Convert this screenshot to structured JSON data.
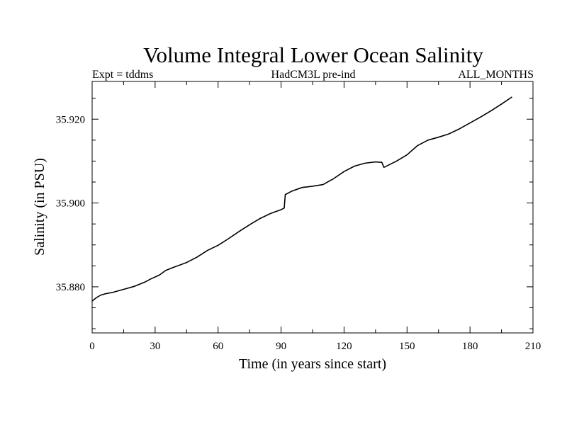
{
  "chart_data": {
    "type": "line",
    "title": "Volume Integral Lower Ocean Salinity",
    "subtitle_left": "Expt = tddms",
    "subtitle_center": "HadCM3L pre-ind",
    "subtitle_right": "ALL_MONTHS",
    "xlabel": "Time (in years since start)",
    "ylabel": "Salinity (in PSU)",
    "xlim": [
      0,
      210
    ],
    "ylim": [
      35.869,
      35.929
    ],
    "xticks": [
      0,
      30,
      60,
      90,
      120,
      150,
      180,
      210
    ],
    "xtick_labels": [
      "0",
      "30",
      "60",
      "90",
      "120",
      "150",
      "180",
      "210"
    ],
    "yticks": [
      35.88,
      35.9,
      35.92
    ],
    "ytick_labels": [
      "35.880",
      "35.900",
      "35.920"
    ],
    "grid": false,
    "series": [
      {
        "color": "#000000",
        "x": [
          0,
          2,
          4,
          6,
          10,
          15,
          20,
          25,
          28,
          32,
          35,
          38,
          45,
          50,
          55,
          60,
          65,
          70,
          75,
          80,
          85,
          90,
          91.5,
          92,
          95,
          100,
          105,
          110,
          115,
          120,
          125,
          130,
          135,
          138,
          139,
          145,
          150,
          155,
          160,
          165,
          170,
          175,
          180,
          185,
          190,
          195,
          200
        ],
        "y": [
          35.8766,
          35.8774,
          35.878,
          35.8783,
          35.8787,
          35.8794,
          35.8801,
          35.8811,
          35.8819,
          35.8828,
          35.8839,
          35.8845,
          35.8858,
          35.8871,
          35.8887,
          35.8899,
          35.8915,
          35.8932,
          35.8948,
          35.8963,
          35.8975,
          35.8984,
          35.8988,
          35.902,
          35.9028,
          35.9037,
          35.904,
          35.9044,
          35.9058,
          35.9075,
          35.9088,
          35.9095,
          35.9098,
          35.9097,
          35.9085,
          35.91,
          35.9115,
          35.9137,
          35.915,
          35.9157,
          35.9165,
          35.9177,
          35.9191,
          35.9205,
          35.922,
          35.9236,
          35.9253
        ]
      }
    ]
  }
}
